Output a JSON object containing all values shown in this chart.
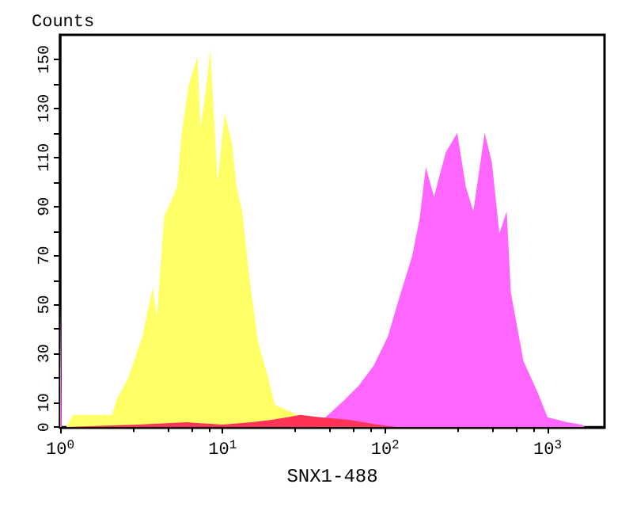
{
  "chart_data": {
    "type": "area",
    "xlabel": "SNX1-488",
    "ylabel": "Counts",
    "log": "x",
    "grid": false,
    "marker": "none",
    "xlim": [
      1,
      2240
    ],
    "xticks": [
      {
        "value": 1,
        "label": "10$^{0}$"
      },
      {
        "value": 10,
        "label": "10$^{1}$"
      },
      {
        "value": 100,
        "label": "10$^{2}$"
      },
      {
        "value": 1000,
        "label": "10$^{3}$"
      }
    ],
    "ylim": [
      0,
      160
    ],
    "yticks": [
      0,
      10,
      {
        "value": 20,
        "label": null
      },
      30,
      {
        "value": 40,
        "label": null
      },
      50,
      {
        "value": 60,
        "label": null
      },
      70,
      {
        "value": 80,
        "label": null
      },
      90,
      {
        "value": 100,
        "label": null
      },
      110,
      {
        "value": 120,
        "label": null
      },
      130,
      {
        "value": 140,
        "label": null
      },
      150
    ],
    "series": [
      {
        "color": "#ffff66",
        "x": [
          1.09,
          1.2,
          1.63,
          2.09,
          2.22,
          2.62,
          3.21,
          3.71,
          3.94,
          4.37,
          5.25,
          5.6,
          6.2,
          7.0,
          7.3,
          7.9,
          8.4,
          9.3,
          10.3,
          11.4,
          12.2,
          13.2,
          14.6,
          16.5,
          19.1,
          21,
          27,
          35
        ],
        "values": [
          0,
          5,
          5,
          5,
          11,
          20,
          37,
          57,
          45,
          86,
          98,
          120,
          140,
          151,
          122,
          138,
          154,
          100,
          128,
          116,
          98,
          88,
          61,
          35,
          20,
          9,
          6,
          0
        ]
      },
      {
        "color": "#ff66ff",
        "x": [
          1,
          1.02,
          28.7,
          43,
          56,
          69,
          85,
          104,
          120,
          147,
          163,
          178,
          200,
          236,
          278,
          314,
          349,
          410,
          454,
          505,
          560,
          594,
          710,
          870,
          1000,
          1320,
          1620,
          1700
        ],
        "values": [
          50,
          0,
          0,
          4,
          11,
          17,
          25,
          37,
          51,
          70,
          85,
          106,
          94,
          112,
          120,
          98,
          88,
          120,
          108,
          79,
          88,
          55,
          27,
          14,
          4,
          2,
          1,
          0
        ]
      },
      {
        "color": "#ff3355",
        "x": [
          1,
          3,
          6,
          10,
          15,
          20,
          25,
          30,
          40,
          60,
          90,
          120
        ],
        "values": [
          0,
          1,
          2,
          1,
          2,
          3,
          4,
          5,
          4,
          3,
          1,
          0
        ]
      }
    ]
  }
}
